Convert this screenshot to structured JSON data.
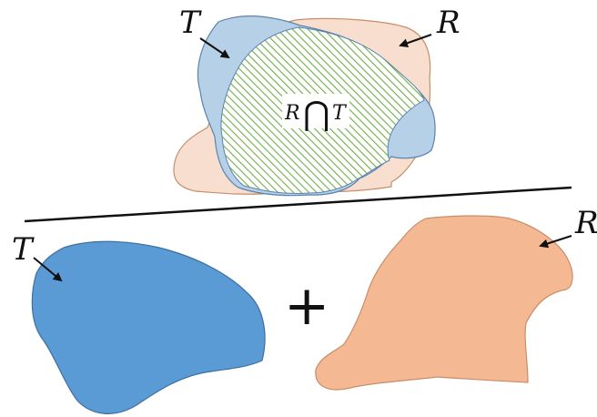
{
  "diagram": {
    "top": {
      "label_t": "T",
      "label_r": "R",
      "label_intersection_r": "R",
      "label_intersection_op": "⋂",
      "label_intersection_t": "T"
    },
    "bottom": {
      "label_t": "T",
      "label_r": "R",
      "operator": "+"
    },
    "colors": {
      "t_light": "#b6d0e8",
      "t_dark": "#5b9bd5",
      "r_light": "#f8decf",
      "r_dark": "#f4b993",
      "r_stroke": "#c88d69",
      "t_stroke": "#5b84ad",
      "hatch": "#70ad47"
    }
  }
}
